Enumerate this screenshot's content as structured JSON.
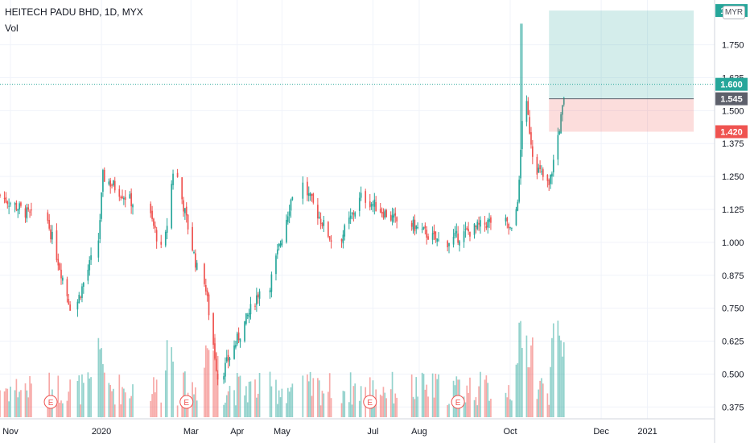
{
  "header": {
    "symbol_line": "HEITECH PADU BHD, 1D, MYX",
    "indicator": "Vol",
    "currency": "MYR"
  },
  "colors": {
    "up": "#26a69a",
    "down": "#ef5350",
    "target_zone": "#26a69a",
    "stop_zone": "#ef5350",
    "current_line": "#26a69a",
    "entry_label_bg": "#5d606b"
  },
  "chart_data": {
    "type": "candlestick",
    "title": "HEITECH PADU BHD, 1D, MYX",
    "y_axis_ticks": [
      "1.750",
      "1.625",
      "1.500",
      "1.375",
      "1.250",
      "1.125",
      "1.000",
      "0.875",
      "0.750",
      "0.625",
      "0.500",
      "0.375"
    ],
    "y_axis_values": [
      1.75,
      1.625,
      1.5,
      1.375,
      1.25,
      1.125,
      1.0,
      0.875,
      0.75,
      0.625,
      0.5,
      0.375
    ],
    "ylim": [
      0.33,
      1.92
    ],
    "x_axis_ticks": [
      "Nov",
      "2020",
      "Mar",
      "Apr",
      "May",
      "Jul",
      "Aug",
      "Oct",
      "Dec",
      "2021"
    ],
    "x_axis_dates": [
      "2019-11-01",
      "2020-01-01",
      "2020-03-01",
      "2020-04-01",
      "2020-05-01",
      "2020-07-01",
      "2020-08-01",
      "2020-10-01",
      "2020-12-01",
      "2021-01-01"
    ],
    "x_range": [
      "2019-10-25",
      "2021-02-15"
    ],
    "earnings_markers": {
      "label": "E",
      "dates": [
        "2019-11-28",
        "2020-02-27",
        "2020-06-29",
        "2020-08-27"
      ]
    },
    "price_labels": [
      {
        "name": "target",
        "value": "1.880",
        "type": "target"
      },
      {
        "name": "current",
        "value": "1.600",
        "type": "current"
      },
      {
        "name": "entry",
        "value": "1.545",
        "type": "entry"
      },
      {
        "name": "stop",
        "value": "1.420",
        "type": "stop"
      }
    ],
    "position": {
      "start": "2020-10-27",
      "end": "2021-02-01",
      "entry": 1.545,
      "target": 1.88,
      "stop": 1.42
    },
    "current_price": 1.6,
    "series": [
      {
        "start": "2019-10-25",
        "days": 22,
        "from": 1.18,
        "to": 1.1
      },
      {
        "start": "2019-11-26",
        "days": 16,
        "from": 1.1,
        "to": 0.76
      },
      {
        "start": "2019-12-16",
        "days": 10,
        "from": 0.76,
        "to": 0.93
      },
      {
        "start": "2019-12-30",
        "days": 4,
        "from": 0.93,
        "to": 1.25
      },
      {
        "start": "2020-01-03",
        "days": 20,
        "from": 1.25,
        "to": 1.15
      },
      {
        "start": "2020-02-01",
        "days": 10,
        "from": 1.15,
        "to": 0.97
      },
      {
        "start": "2020-02-13",
        "days": 6,
        "from": 0.97,
        "to": 1.27
      },
      {
        "start": "2020-02-21",
        "days": 14,
        "from": 1.27,
        "to": 0.9
      },
      {
        "start": "2020-03-10",
        "days": 10,
        "from": 0.9,
        "to": 0.49
      },
      {
        "start": "2020-03-22",
        "days": 26,
        "from": 0.49,
        "to": 0.82
      },
      {
        "start": "2020-04-23",
        "days": 18,
        "from": 0.82,
        "to": 1.23
      },
      {
        "start": "2020-05-15",
        "days": 20,
        "from": 1.23,
        "to": 1.01
      },
      {
        "start": "2020-06-10",
        "days": 14,
        "from": 1.01,
        "to": 1.17
      },
      {
        "start": "2020-06-26",
        "days": 24,
        "from": 1.17,
        "to": 1.07
      },
      {
        "start": "2020-07-27",
        "days": 20,
        "from": 1.07,
        "to": 1.0
      },
      {
        "start": "2020-08-20",
        "days": 30,
        "from": 1.0,
        "to": 1.08
      },
      {
        "start": "2020-09-28",
        "days": 6,
        "from": 1.08,
        "to": 1.03
      },
      {
        "start": "2020-10-04",
        "days": 4,
        "from": 1.03,
        "to": 1.22
      },
      {
        "start": "2020-10-08",
        "days": 3,
        "from": 1.22,
        "to": 1.6
      },
      {
        "start": "2020-10-11",
        "days": 7,
        "from": 1.6,
        "to": 1.3
      },
      {
        "start": "2020-10-18",
        "days": 10,
        "from": 1.3,
        "to": 1.21
      },
      {
        "start": "2020-10-28",
        "days": 12,
        "from": 1.21,
        "to": 1.6
      }
    ]
  }
}
